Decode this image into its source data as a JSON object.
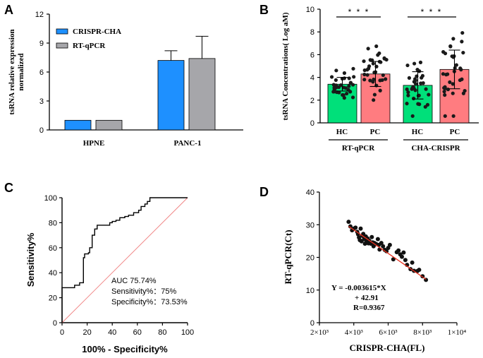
{
  "colors": {
    "blue": "#1E90FF",
    "gray": "#A6A6AA",
    "green": "#00E07A",
    "pink": "#FF7C80",
    "roc": "#000000",
    "diagonal": "#F08080",
    "fit": "#E8301E"
  },
  "chart_data": [
    {
      "panel": "A",
      "type": "bar",
      "ylabel_line1": "tsRNA relative expression",
      "ylabel_line2": "normalized",
      "ylim": [
        0,
        12
      ],
      "yticks": [
        "0",
        "3",
        "6",
        "9",
        "12"
      ],
      "categories": [
        "HPNE",
        "PANC-1"
      ],
      "series": [
        {
          "name": "CRISPR-CHA",
          "values": [
            1.0,
            7.2
          ],
          "errors": [
            0,
            1.0
          ]
        },
        {
          "name": "RT-qPCR",
          "values": [
            1.0,
            7.4
          ],
          "errors": [
            0,
            2.3
          ]
        }
      ]
    },
    {
      "panel": "B",
      "type": "bar",
      "ylabel": "tsRNA Concentrations( Log aM)",
      "ylim": [
        0,
        10
      ],
      "yticks": [
        "0",
        "2",
        "4",
        "6",
        "8",
        "10"
      ],
      "categories": [
        "HC",
        "PC",
        "HC",
        "PC"
      ],
      "groups": [
        "RT-qPCR",
        "CHA-CRISPR"
      ],
      "values": [
        3.4,
        4.3,
        3.3,
        4.7
      ],
      "errors": [
        0.6,
        1.1,
        1.2,
        1.7
      ],
      "significance": "* * *"
    },
    {
      "panel": "C",
      "type": "line",
      "xlabel": "100% - Specificity%",
      "ylabel": "Sensitivity%",
      "xlim": [
        0,
        100
      ],
      "ylim": [
        0,
        100
      ],
      "xticks": [
        "0",
        "20",
        "40",
        "60",
        "80",
        "100"
      ],
      "yticks": [
        "0",
        "20",
        "40",
        "60",
        "80",
        "100"
      ],
      "x": [
        0,
        0,
        10,
        10,
        14,
        14,
        17,
        17,
        18,
        18,
        21,
        21,
        22,
        22,
        24,
        24,
        26,
        26,
        28,
        28,
        38,
        38,
        40,
        40,
        43,
        43,
        46,
        46,
        50,
        50,
        53,
        53,
        57,
        57,
        61,
        61,
        63,
        63,
        66,
        66,
        68,
        68,
        70,
        70,
        100
      ],
      "y": [
        0,
        28,
        28,
        30,
        30,
        32,
        32,
        52,
        52,
        55,
        55,
        56,
        56,
        60,
        60,
        70,
        70,
        75,
        75,
        78,
        78,
        80,
        80,
        81,
        81,
        82,
        82,
        84,
        84,
        85,
        85,
        86,
        86,
        88,
        88,
        90,
        90,
        93,
        93,
        95,
        95,
        97,
        97,
        100,
        100
      ],
      "annotation_lines": [
        "AUC 75.74%",
        "Sensitivity%：75%",
        "Specificity%：73.53%"
      ]
    },
    {
      "panel": "D",
      "type": "scatter",
      "xlabel": "CRISPR-CHA(FL)",
      "ylabel": "RT-qPCR(Ct)",
      "xlim": [
        2000,
        10000
      ],
      "ylim": [
        0,
        40
      ],
      "xticks": [
        "2×10³",
        "4×10³",
        "6×10³",
        "8×10³",
        "1×10⁴"
      ],
      "yticks": [
        "0",
        "10",
        "20",
        "30",
        "40"
      ],
      "x": [
        3700,
        3800,
        3900,
        4000,
        4100,
        4200,
        4250,
        4300,
        4350,
        4400,
        4450,
        4500,
        4550,
        4600,
        4650,
        4700,
        4750,
        4800,
        4850,
        4900,
        5000,
        5050,
        5100,
        5150,
        5200,
        5300,
        5400,
        5450,
        5500,
        5600,
        5700,
        5800,
        5900,
        6000,
        6100,
        6300,
        6500,
        6600,
        6700,
        6800,
        6900,
        7000,
        7100,
        7300,
        7400,
        7500,
        7700,
        7800,
        8000,
        8200
      ],
      "y": [
        30.9,
        29.5,
        28.3,
        28.8,
        29.1,
        27.8,
        27.1,
        26.1,
        25.3,
        28.8,
        24.9,
        26.6,
        27.2,
        25.6,
        24.2,
        26.4,
        24.8,
        25.8,
        24.3,
        25.1,
        24.2,
        26.2,
        24.6,
        23.4,
        24.4,
        24.1,
        25.6,
        23.8,
        22.4,
        24.4,
        23.4,
        22.3,
        21.9,
        22.9,
        23.8,
        19.4,
        21.6,
        22.1,
        20.9,
        20.2,
        21.5,
        19.2,
        17.7,
        16.4,
        18.4,
        15.9,
        15.8,
        16.2,
        14.2,
        13.1
      ],
      "fit_x": [
        3700,
        8200
      ],
      "fit_y": [
        29.5,
        13.3
      ],
      "equation_lines": [
        "Y = -0.003615*X",
        "+ 42.91",
        "R=0.9367"
      ]
    }
  ],
  "panels": {
    "a": "A",
    "b": "B",
    "c": "C",
    "d": "D"
  }
}
